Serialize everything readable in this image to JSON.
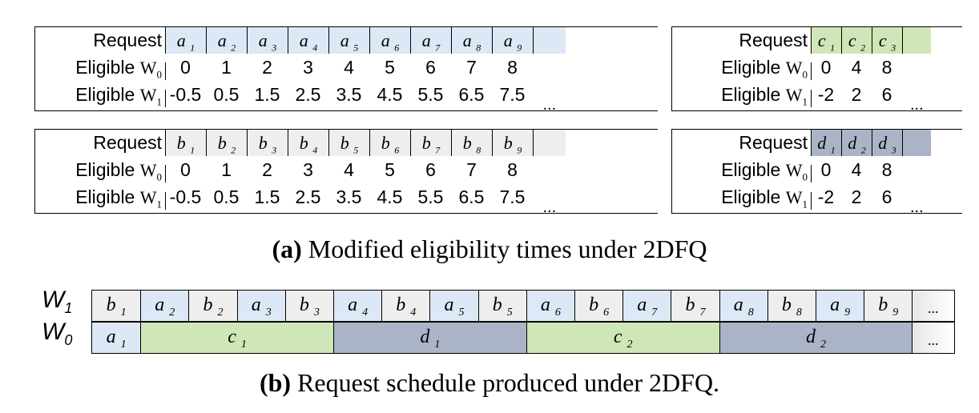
{
  "colors": {
    "a": "#dce8f5",
    "b": "#eeeeee",
    "c": "#cfe6b8",
    "d": "#aab4c6",
    "border": "#000000"
  },
  "row_labels": {
    "request": "Request",
    "eligible": "Eligible ",
    "w": "W",
    "w0_sub": "0",
    "w1_sub": "1"
  },
  "panels": {
    "a": {
      "letter": "a",
      "subs": [
        "1",
        "2",
        "3",
        "4",
        "5",
        "6",
        "7",
        "8",
        "9"
      ],
      "w0": [
        "0",
        "1",
        "2",
        "3",
        "4",
        "5",
        "6",
        "7",
        "8"
      ],
      "w1": [
        "-0.5",
        "0.5",
        "1.5",
        "2.5",
        "3.5",
        "4.5",
        "5.5",
        "6.5",
        "7.5"
      ]
    },
    "b": {
      "letter": "b",
      "subs": [
        "1",
        "2",
        "3",
        "4",
        "5",
        "6",
        "7",
        "8",
        "9"
      ],
      "w0": [
        "0",
        "1",
        "2",
        "3",
        "4",
        "5",
        "6",
        "7",
        "8"
      ],
      "w1": [
        "-0.5",
        "0.5",
        "1.5",
        "2.5",
        "3.5",
        "4.5",
        "5.5",
        "6.5",
        "7.5"
      ]
    },
    "c": {
      "letter": "c",
      "subs": [
        "1",
        "2",
        "3"
      ],
      "w0": [
        "0",
        "4",
        "8"
      ],
      "w1": [
        "-2",
        "2",
        "6"
      ]
    },
    "d": {
      "letter": "d",
      "subs": [
        "1",
        "2",
        "3"
      ],
      "w0": [
        "0",
        "4",
        "8"
      ],
      "w1": [
        "-2",
        "2",
        "6"
      ]
    }
  },
  "ellipsis": "...",
  "caption_a": {
    "tag": "(a)",
    "text": " Modified eligibility times under 2DFQ"
  },
  "caption_b": {
    "tag": "(b)",
    "text": " Request schedule produced under 2DFQ."
  },
  "schedule": {
    "w1_label": {
      "w": "W",
      "sub": "1"
    },
    "w0_label": {
      "w": "W",
      "sub": "0"
    },
    "w1_row": [
      {
        "l": "b",
        "s": "1"
      },
      {
        "l": "a",
        "s": "2"
      },
      {
        "l": "b",
        "s": "2"
      },
      {
        "l": "a",
        "s": "3"
      },
      {
        "l": "b",
        "s": "3"
      },
      {
        "l": "a",
        "s": "4"
      },
      {
        "l": "b",
        "s": "4"
      },
      {
        "l": "a",
        "s": "5"
      },
      {
        "l": "b",
        "s": "5"
      },
      {
        "l": "a",
        "s": "6"
      },
      {
        "l": "b",
        "s": "6"
      },
      {
        "l": "a",
        "s": "7"
      },
      {
        "l": "b",
        "s": "7"
      },
      {
        "l": "a",
        "s": "8"
      },
      {
        "l": "b",
        "s": "8"
      },
      {
        "l": "a",
        "s": "9"
      },
      {
        "l": "b",
        "s": "9"
      }
    ],
    "w0_row": [
      {
        "l": "a",
        "s": "1"
      },
      {
        "l": "c",
        "s": "1"
      },
      {
        "l": "d",
        "s": "1"
      },
      {
        "l": "c",
        "s": "2"
      },
      {
        "l": "d",
        "s": "2"
      }
    ],
    "ellipsis": "..."
  }
}
